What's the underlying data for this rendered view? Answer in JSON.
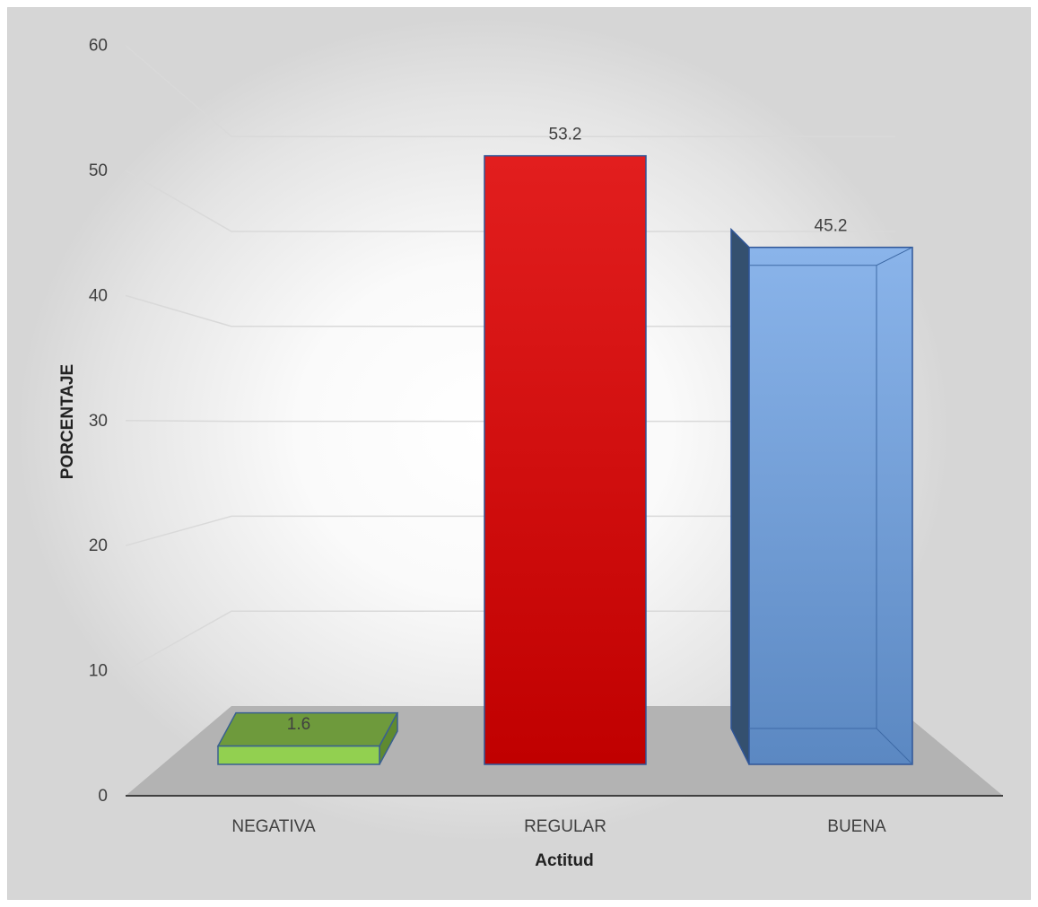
{
  "chart_data": {
    "type": "bar",
    "style": "3d-column",
    "title": "",
    "xlabel": "Actitud",
    "ylabel": "PORCENTAJE",
    "categories": [
      "NEGATIVA",
      "REGULAR",
      "BUENA"
    ],
    "values": [
      1.6,
      53.2,
      45.2
    ],
    "value_labels": [
      "1.6",
      "53.2",
      "45.2"
    ],
    "bar_colors": [
      "#92d050",
      "#c00000",
      "#5b8fd0"
    ],
    "ylim": [
      0,
      60
    ],
    "yticks": [
      "0",
      "10",
      "20",
      "30",
      "40",
      "50",
      "60"
    ],
    "grid": true,
    "legend": "none"
  }
}
